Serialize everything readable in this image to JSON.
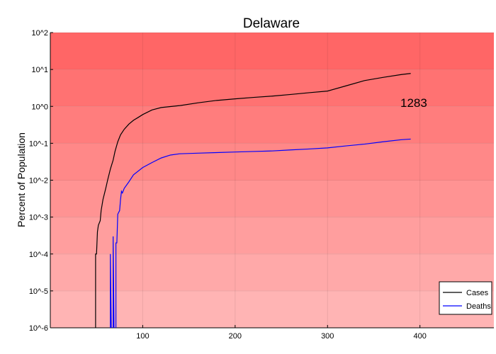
{
  "chart_data": {
    "type": "line",
    "title": "Delaware",
    "ylabel": "Percent of Population",
    "xlabel": "",
    "y_scale": "log10",
    "ylim": [
      1e-06,
      100
    ],
    "xlim": [
      0,
      480
    ],
    "x_ticks": [
      100,
      200,
      300,
      400
    ],
    "y_ticks": [
      {
        "value": 100,
        "label": "10^2"
      },
      {
        "value": 10,
        "label": "10^1"
      },
      {
        "value": 1,
        "label": "10^0"
      },
      {
        "value": 0.1,
        "label": "10^-1"
      },
      {
        "value": 0.01,
        "label": "10^-2"
      },
      {
        "value": 0.001,
        "label": "10^-3"
      },
      {
        "value": 0.0001,
        "label": "10^-4"
      },
      {
        "value": 1e-05,
        "label": "10^-5"
      },
      {
        "value": 1e-06,
        "label": "10^-6"
      }
    ],
    "background_band_colors": [
      "#ffb4b4",
      "#ffa9a9",
      "#ff9e9e",
      "#ff9393",
      "#ff8888",
      "#ff7d7d",
      "#ff7272",
      "#ff6666"
    ],
    "grid": true,
    "legend_position": "bottom-right",
    "annotation": "1283",
    "series": [
      {
        "name": "Cases",
        "color": "#000000",
        "points": [
          [
            49,
            1e-06
          ],
          [
            49,
            0.0001
          ],
          [
            50,
            0.0001
          ],
          [
            51,
            0.0004
          ],
          [
            52,
            0.0006
          ],
          [
            54,
            0.0008
          ],
          [
            55,
            0.0015
          ],
          [
            57,
            0.003
          ],
          [
            60,
            0.006
          ],
          [
            62,
            0.01
          ],
          [
            65,
            0.02
          ],
          [
            68,
            0.035
          ],
          [
            70,
            0.06
          ],
          [
            73,
            0.11
          ],
          [
            76,
            0.17
          ],
          [
            80,
            0.24
          ],
          [
            85,
            0.33
          ],
          [
            90,
            0.42
          ],
          [
            95,
            0.5
          ],
          [
            100,
            0.6
          ],
          [
            110,
            0.8
          ],
          [
            120,
            0.93
          ],
          [
            140,
            1.05
          ],
          [
            160,
            1.25
          ],
          [
            180,
            1.45
          ],
          [
            200,
            1.6
          ],
          [
            220,
            1.75
          ],
          [
            240,
            1.9
          ],
          [
            260,
            2.1
          ],
          [
            280,
            2.35
          ],
          [
            300,
            2.6
          ],
          [
            320,
            3.6
          ],
          [
            340,
            5.0
          ],
          [
            360,
            6.1
          ],
          [
            380,
            7.3
          ],
          [
            390,
            7.8
          ]
        ]
      },
      {
        "name": "Deaths",
        "color": "#0000ff",
        "segments": [
          [
            [
              65,
              1e-06
            ],
            [
              65,
              0.0001
            ],
            [
              66,
              1e-06
            ]
          ],
          [
            [
              68,
              1e-06
            ],
            [
              68,
              0.0003
            ],
            [
              69,
              1e-06
            ]
          ],
          [
            [
              71,
              1e-06
            ],
            [
              71,
              0.0002
            ],
            [
              72,
              0.0002
            ],
            [
              73,
              0.0012
            ],
            [
              75,
              0.0015
            ],
            [
              76,
              0.003
            ],
            [
              77,
              0.005
            ],
            [
              78,
              0.0045
            ],
            [
              80,
              0.006
            ],
            [
              85,
              0.009
            ],
            [
              90,
              0.014
            ],
            [
              100,
              0.022
            ],
            [
              110,
              0.03
            ],
            [
              120,
              0.04
            ],
            [
              130,
              0.048
            ],
            [
              140,
              0.052
            ],
            [
              160,
              0.054
            ],
            [
              180,
              0.056
            ],
            [
              200,
              0.058
            ],
            [
              220,
              0.06
            ],
            [
              240,
              0.062
            ],
            [
              260,
              0.066
            ],
            [
              280,
              0.07
            ],
            [
              300,
              0.075
            ],
            [
              320,
              0.085
            ],
            [
              340,
              0.095
            ],
            [
              360,
              0.11
            ],
            [
              380,
              0.125
            ],
            [
              390,
              0.13
            ]
          ]
        ]
      }
    ]
  }
}
